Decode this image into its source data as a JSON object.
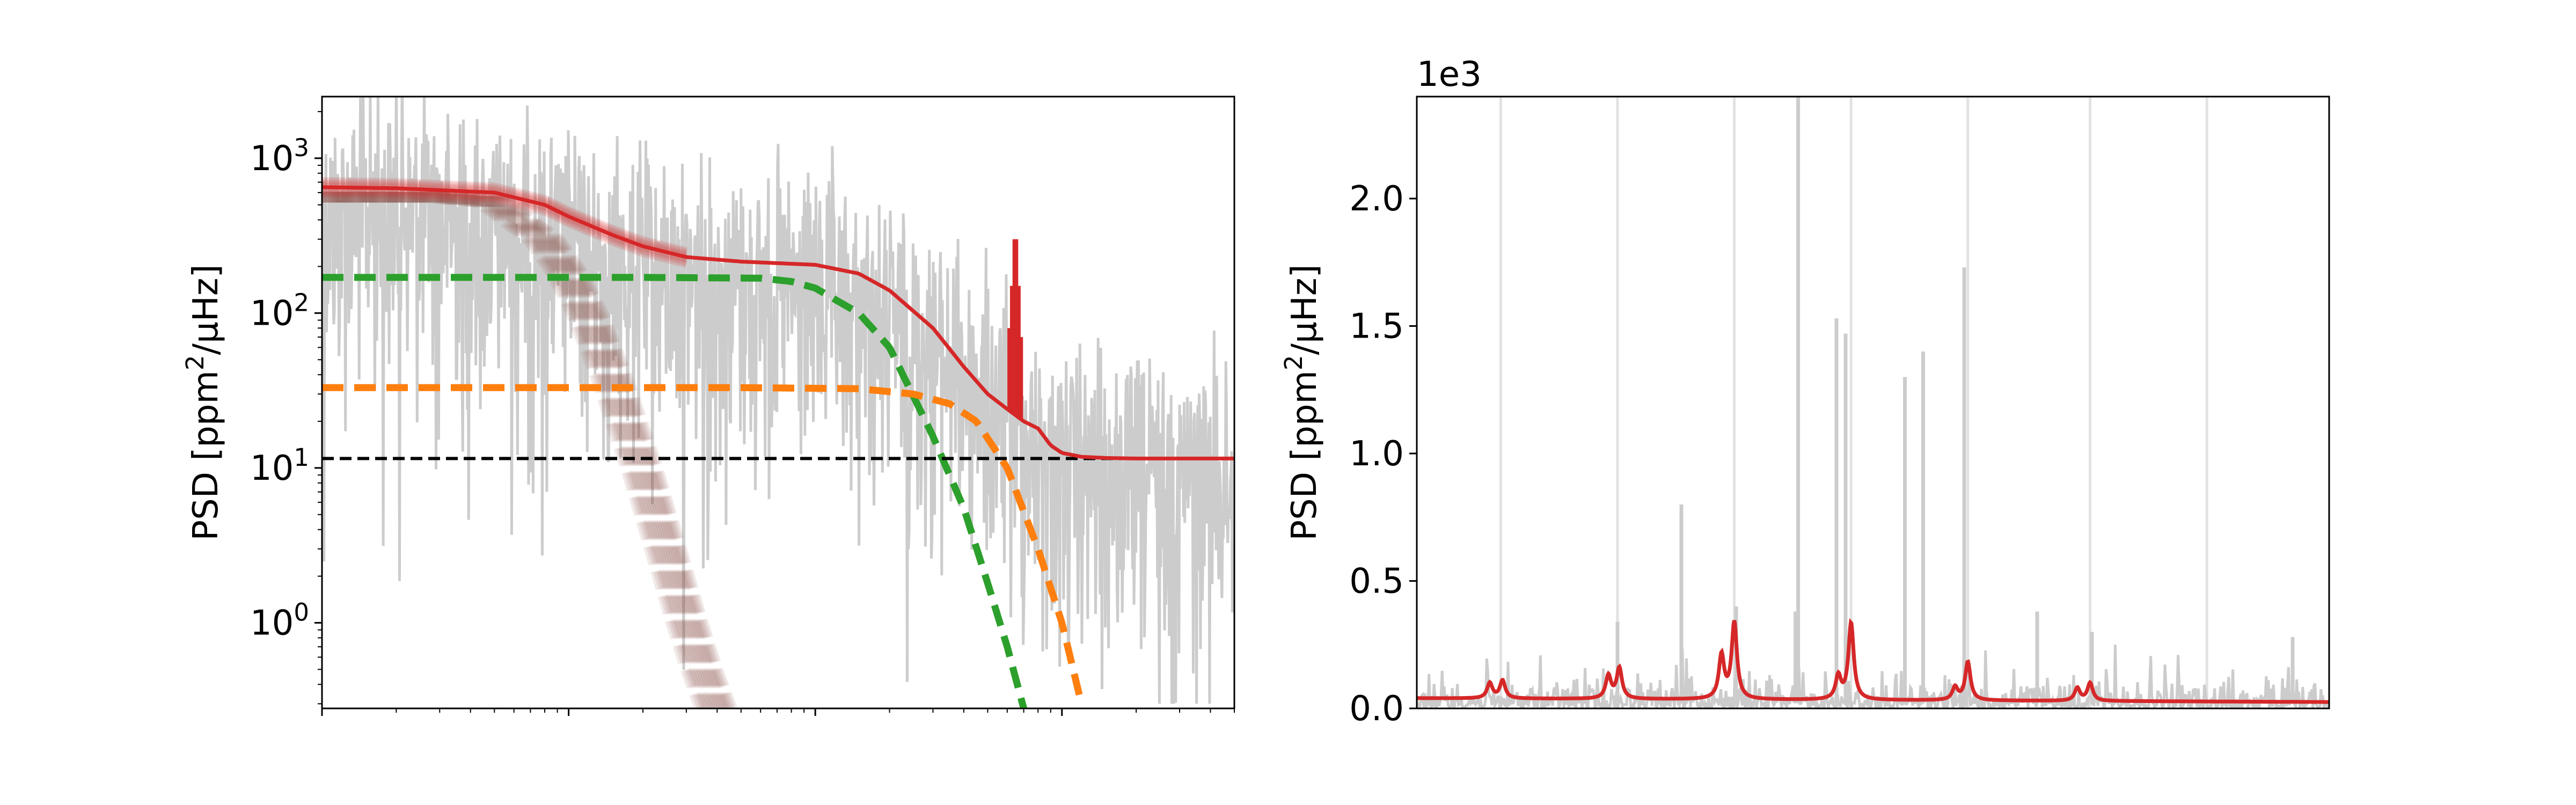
{
  "colors": {
    "data": "#cccccc",
    "model": "#d62728",
    "samples": "#8c564b",
    "harvey_1": "#2ca02c",
    "harvey_2": "#ff7f0e",
    "white_noise": "#000000",
    "mode_marker": "#e2e2e2"
  },
  "chart_data": [
    {
      "type": "line",
      "panel": "left",
      "title": "",
      "xlabel": "",
      "ylabel": "PSD [ppm$^2/\\mu$Hz]",
      "ylabel_parts": {
        "main": "PSD [ppm",
        "sup": "2",
        "rest": "/μHz]"
      },
      "xscale": "log",
      "yscale": "log",
      "xlim": [
        1,
        5000
      ],
      "ylim": [
        0.28,
        2500
      ],
      "yticks": [
        {
          "value": 1,
          "base": "10",
          "exp": "0"
        },
        {
          "value": 10,
          "base": "10",
          "exp": "1"
        },
        {
          "value": 100,
          "base": "10",
          "exp": "2"
        },
        {
          "value": 1000,
          "base": "10",
          "exp": "3"
        }
      ],
      "grid": false,
      "legend": "none",
      "series": [
        {
          "role": "data",
          "color": "gray",
          "style": "solid",
          "x": [
            1,
            2,
            5,
            10,
            20,
            50,
            100,
            200,
            400,
            600,
            800,
            1000,
            1500,
            2000,
            3000,
            5000
          ],
          "y": [
            600,
            700,
            450,
            350,
            250,
            220,
            180,
            120,
            60,
            30,
            18,
            14,
            12,
            12,
            12,
            12
          ]
        },
        {
          "role": "model",
          "color": "red",
          "style": "solid",
          "x": [
            1,
            2,
            5,
            8,
            10,
            15,
            20,
            30,
            50,
            100,
            150,
            200,
            300,
            400,
            500,
            600,
            700,
            800,
            900,
            1000,
            1200,
            1500,
            2000,
            3000,
            5000
          ],
          "y": [
            650,
            640,
            600,
            500,
            420,
            320,
            270,
            230,
            215,
            205,
            180,
            140,
            80,
            45,
            30,
            24,
            20,
            18,
            14,
            12.5,
            11.8,
            11.6,
            11.5,
            11.5,
            11.5
          ]
        },
        {
          "role": "harvey_1",
          "color": "green",
          "style": "dashed",
          "x": [
            1,
            5,
            20,
            60,
            80,
            100,
            150,
            200,
            300,
            400,
            500,
            600,
            700
          ],
          "y": [
            170,
            170,
            170,
            168,
            160,
            145,
            100,
            60,
            16,
            5.5,
            1.8,
            0.7,
            0.28
          ]
        },
        {
          "role": "harvey_2",
          "color": "orange",
          "style": "dashed",
          "x": [
            1,
            10,
            50,
            150,
            250,
            350,
            450,
            600,
            800,
            1000,
            1200
          ],
          "y": [
            33,
            33,
            33,
            32.5,
            30,
            26,
            20,
            10,
            3,
            1,
            0.3
          ]
        },
        {
          "role": "white_noise",
          "color": "black",
          "style": "dashed",
          "x": [
            1,
            5000
          ],
          "y": [
            11.5,
            11.5
          ]
        },
        {
          "role": "samples",
          "color": "brown",
          "style": "solid",
          "x": [
            1,
            3,
            5,
            8,
            10,
            12,
            15,
            20,
            25,
            30,
            35,
            40
          ],
          "y": [
            560,
            560,
            520,
            300,
            180,
            100,
            40,
            10,
            3,
            1.1,
            0.5,
            0.28
          ]
        }
      ],
      "mode_peaks": [
        {
          "x": 610,
          "y": 80
        },
        {
          "x": 625,
          "y": 150
        },
        {
          "x": 640,
          "y": 300
        },
        {
          "x": 655,
          "y": 300
        },
        {
          "x": 670,
          "y": 150
        },
        {
          "x": 685,
          "y": 70
        }
      ]
    },
    {
      "type": "line",
      "panel": "right",
      "title": "",
      "xlabel": "",
      "ylabel": "PSD [ppm$^2/\\mu$Hz]",
      "ylabel_parts": {
        "main": "PSD [ppm",
        "sup": "2",
        "rest": "/μHz]"
      },
      "offset_text": "1e3",
      "xlim": [
        0,
        1
      ],
      "ylim": [
        0,
        2.4
      ],
      "yticks": [
        "0.0",
        "0.5",
        "1.0",
        "1.5",
        "2.0"
      ],
      "ytick_values": [
        0,
        0.5,
        1.0,
        1.5,
        2.0
      ],
      "grid": false,
      "legend": "none",
      "mode_markers_x": [
        0.092,
        0.22,
        0.348,
        0.476,
        0.604,
        0.738,
        0.866
      ],
      "data_spikes": [
        {
          "x": 0.29,
          "y": 0.8
        },
        {
          "x": 0.35,
          "y": 0.4
        },
        {
          "x": 0.415,
          "y": 0.38
        },
        {
          "x": 0.418,
          "y": 2.4
        },
        {
          "x": 0.46,
          "y": 1.53
        },
        {
          "x": 0.47,
          "y": 1.47
        },
        {
          "x": 0.535,
          "y": 1.3
        },
        {
          "x": 0.555,
          "y": 1.4
        },
        {
          "x": 0.6,
          "y": 1.73
        },
        {
          "x": 0.22,
          "y": 0.34
        },
        {
          "x": 0.68,
          "y": 0.38
        },
        {
          "x": 0.74,
          "y": 0.3
        },
        {
          "x": 0.96,
          "y": 0.28
        }
      ],
      "model_baseline": {
        "x": [
          0,
          1
        ],
        "y": [
          0.04,
          0.025
        ]
      },
      "model_peaks": [
        {
          "x": 0.08,
          "y": 0.06
        },
        {
          "x": 0.094,
          "y": 0.07
        },
        {
          "x": 0.21,
          "y": 0.09
        },
        {
          "x": 0.222,
          "y": 0.12
        },
        {
          "x": 0.334,
          "y": 0.17
        },
        {
          "x": 0.348,
          "y": 0.3
        },
        {
          "x": 0.462,
          "y": 0.09
        },
        {
          "x": 0.476,
          "y": 0.3
        },
        {
          "x": 0.59,
          "y": 0.05
        },
        {
          "x": 0.604,
          "y": 0.15
        },
        {
          "x": 0.724,
          "y": 0.05
        },
        {
          "x": 0.738,
          "y": 0.07
        }
      ]
    }
  ]
}
